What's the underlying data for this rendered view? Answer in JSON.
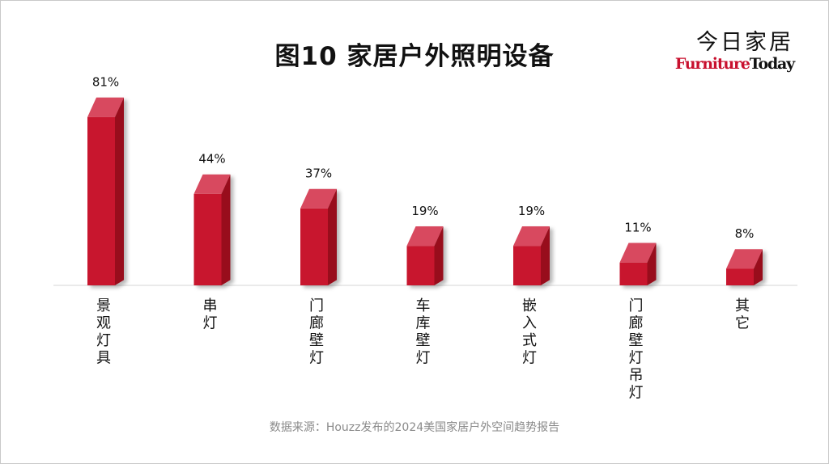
{
  "logo": {
    "cn": "今日家居",
    "en_part1": "Furniture",
    "en_part2": "Today"
  },
  "chart_data": {
    "type": "bar",
    "title": "图10  家居户外照明设备",
    "categories": [
      "景观灯具",
      "串灯",
      "门廊壁灯",
      "车库壁灯",
      "嵌入式灯",
      "门廊壁灯吊灯",
      "其它"
    ],
    "values": [
      81,
      44,
      37,
      19,
      19,
      11,
      8
    ],
    "value_labels": [
      "81%",
      "44%",
      "37%",
      "19%",
      "19%",
      "11%",
      "8%"
    ],
    "unit": "%",
    "ylim": [
      0,
      100
    ],
    "grid": false,
    "legend": "none",
    "colors": {
      "bar_front": "#c8192f",
      "bar_top": "#d84a5e",
      "bar_side": "#98101f"
    }
  },
  "source": "数据来源：Houzz发布的2024美国家居户外空间趋势报告"
}
